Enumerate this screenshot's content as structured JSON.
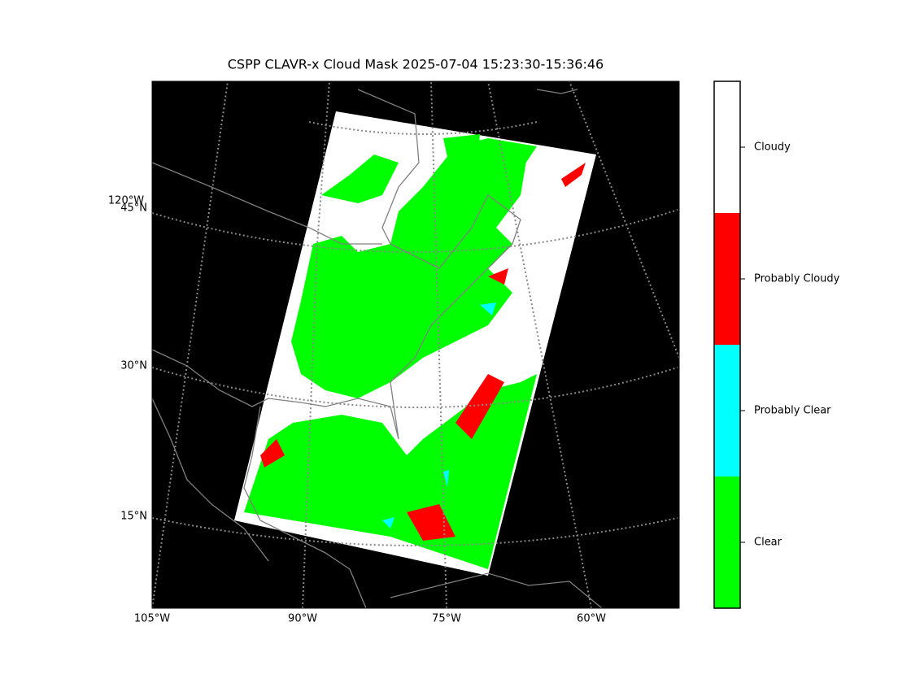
{
  "title": "CSPP CLAVR-x Cloud Mask 2025-07-04 15:23:30-15:36:46",
  "lat_labels": [
    "45°N",
    "30°N",
    "15°N"
  ],
  "meridian_label": "120°W",
  "lon_labels": [
    "105°W",
    "90°W",
    "75°W",
    "60°W"
  ],
  "colorbar": [
    {
      "label": "Clear",
      "color": "#00ff00"
    },
    {
      "label": "Probably Clear",
      "color": "#00ffff"
    },
    {
      "label": "Probably Cloudy",
      "color": "#ff0000"
    },
    {
      "label": "Cloudy",
      "color": "#ffffff"
    }
  ]
}
